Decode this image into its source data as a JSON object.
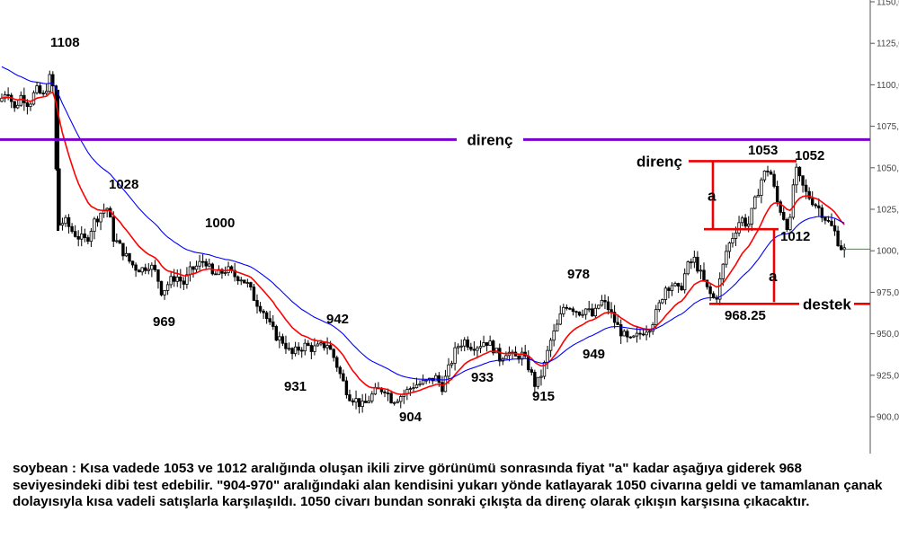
{
  "chart_data": {
    "type": "candlestick",
    "title": "",
    "xlabel": "",
    "ylabel": "",
    "ylim": [
      885,
      1152
    ],
    "yticks": [
      1150,
      1125,
      1100,
      1075,
      1050,
      1025,
      1000,
      975,
      950,
      925,
      900
    ],
    "grid": false,
    "series_colors": {
      "candles": "#000000",
      "fast_ma": "#ff0000",
      "slow_ma": "#0000ff",
      "current_price": "#00bb00"
    },
    "series": [
      {
        "name": "",
        "type": "candlestick"
      },
      {
        "name": "",
        "type": "moving-average",
        "color": "#ff0000"
      },
      {
        "name": "",
        "type": "moving-average",
        "color": "#0000ff"
      }
    ],
    "price_path": [
      [
        0,
        1090
      ],
      [
        8,
        1098
      ],
      [
        16,
        1085
      ],
      [
        24,
        1094
      ],
      [
        32,
        1088
      ],
      [
        40,
        1097
      ],
      [
        48,
        1093
      ],
      [
        56,
        1105
      ],
      [
        60,
        1096
      ],
      [
        64,
        1015
      ],
      [
        72,
        1018
      ],
      [
        80,
        1012
      ],
      [
        88,
        1008
      ],
      [
        96,
        1006
      ],
      [
        104,
        1017
      ],
      [
        112,
        1023
      ],
      [
        120,
        1026
      ],
      [
        126,
        1008
      ],
      [
        134,
        1002
      ],
      [
        142,
        995
      ],
      [
        150,
        990
      ],
      [
        158,
        989
      ],
      [
        166,
        992
      ],
      [
        174,
        986
      ],
      [
        180,
        975
      ],
      [
        188,
        981
      ],
      [
        196,
        985
      ],
      [
        204,
        980
      ],
      [
        212,
        988
      ],
      [
        220,
        991
      ],
      [
        228,
        995
      ],
      [
        236,
        985
      ],
      [
        244,
        986
      ],
      [
        252,
        989
      ],
      [
        260,
        985
      ],
      [
        268,
        984
      ],
      [
        276,
        979
      ],
      [
        284,
        970
      ],
      [
        292,
        965
      ],
      [
        300,
        955
      ],
      [
        308,
        948
      ],
      [
        316,
        945
      ],
      [
        324,
        937
      ],
      [
        332,
        941
      ],
      [
        340,
        943
      ],
      [
        348,
        941
      ],
      [
        356,
        942
      ],
      [
        364,
        944
      ],
      [
        372,
        935
      ],
      [
        380,
        923
      ],
      [
        388,
        913
      ],
      [
        396,
        910
      ],
      [
        404,
        906
      ],
      [
        412,
        912
      ],
      [
        420,
        916
      ],
      [
        428,
        917
      ],
      [
        436,
        910
      ],
      [
        444,
        912
      ],
      [
        452,
        915
      ],
      [
        460,
        919
      ],
      [
        468,
        920
      ],
      [
        476,
        921
      ],
      [
        484,
        924
      ],
      [
        492,
        918
      ],
      [
        500,
        930
      ],
      [
        508,
        942
      ],
      [
        516,
        946
      ],
      [
        524,
        943
      ],
      [
        532,
        943
      ],
      [
        540,
        946
      ],
      [
        548,
        942
      ],
      [
        556,
        935
      ],
      [
        564,
        940
      ],
      [
        572,
        935
      ],
      [
        580,
        938
      ],
      [
        588,
        930
      ],
      [
        596,
        918
      ],
      [
        604,
        928
      ],
      [
        612,
        945
      ],
      [
        620,
        955
      ],
      [
        628,
        968
      ],
      [
        636,
        966
      ],
      [
        644,
        963
      ],
      [
        652,
        965
      ],
      [
        660,
        960
      ],
      [
        668,
        970
      ],
      [
        676,
        966
      ],
      [
        684,
        957
      ],
      [
        692,
        950
      ],
      [
        700,
        945
      ],
      [
        708,
        948
      ],
      [
        716,
        952
      ],
      [
        724,
        955
      ],
      [
        732,
        965
      ],
      [
        740,
        978
      ],
      [
        748,
        980
      ],
      [
        756,
        975
      ],
      [
        764,
        990
      ],
      [
        772,
        995
      ],
      [
        780,
        985
      ],
      [
        788,
        975
      ],
      [
        796,
        970
      ],
      [
        800,
        980
      ],
      [
        808,
        1000
      ],
      [
        816,
        1010
      ],
      [
        824,
        1020
      ],
      [
        832,
        1015
      ],
      [
        840,
        1030
      ],
      [
        848,
        1045
      ],
      [
        856,
        1050
      ],
      [
        860,
        1040
      ],
      [
        864,
        1030
      ],
      [
        872,
        1020
      ],
      [
        878,
        1012
      ],
      [
        884,
        1050
      ],
      [
        890,
        1042
      ],
      [
        896,
        1035
      ],
      [
        904,
        1030
      ],
      [
        912,
        1025
      ],
      [
        920,
        1018
      ],
      [
        928,
        1012
      ],
      [
        934,
        1003
      ],
      [
        940,
        1000
      ]
    ],
    "annotations": [
      {
        "text": "1108"
      },
      {
        "text": "1028"
      },
      {
        "text": "1000"
      },
      {
        "text": "969"
      },
      {
        "text": "942"
      },
      {
        "text": "931"
      },
      {
        "text": "904"
      },
      {
        "text": "933"
      },
      {
        "text": "915"
      },
      {
        "text": "978"
      },
      {
        "text": "949"
      },
      {
        "text": "1053"
      },
      {
        "text": "1052"
      },
      {
        "text": "1012"
      },
      {
        "text": "968.25"
      }
    ],
    "labels": {
      "resistance_main": "direnç",
      "resistance_small": "direnç",
      "support": "destek",
      "a_upper": "a",
      "a_lower": "a"
    },
    "levels": {
      "resistance_main": 1067,
      "box_top": 1054,
      "box_mid": 1013,
      "support_level": 968
    }
  },
  "caption": "soybean : Kısa vadede 1053 ve 1012 aralığında oluşan ikili zirve görünümü sonrasında fiyat \"a\" kadar aşağıya giderek 968 seviyesindeki dibi test edebilir. \"904-970\" aralığındaki alan kendisini yukarı yönde katlayarak 1050 civarına geldi ve tamamlanan çanak dolayısıyla kısa vadeli satışlarla karşılaşıldı. 1050 civarı bundan sonraki çıkışta da direnç olarak çıkışın karşısına çıkacaktır."
}
